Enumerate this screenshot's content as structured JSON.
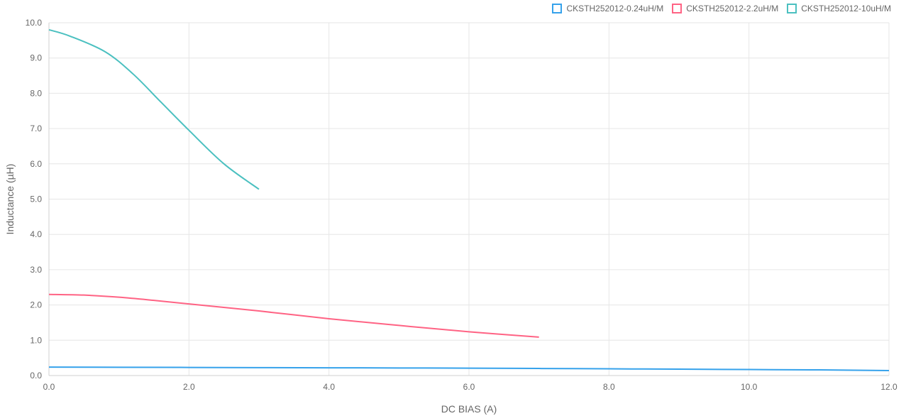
{
  "chart_data": {
    "type": "line",
    "xlabel": "DC BIAS (A)",
    "ylabel": "Inductance (µH)",
    "xlim": [
      0,
      12
    ],
    "ylim": [
      0,
      10
    ],
    "xticks": [
      "0.0",
      "2.0",
      "4.0",
      "6.0",
      "8.0",
      "10.0",
      "12.0"
    ],
    "yticks": [
      "0.0",
      "1.0",
      "2.0",
      "3.0",
      "4.0",
      "5.0",
      "6.0",
      "7.0",
      "8.0",
      "9.0",
      "10.0"
    ],
    "grid": true,
    "legend_position": "top-right",
    "series": [
      {
        "name": "CKSTH252012-0.24uH/M",
        "color": "#36a2eb",
        "points": [
          [
            0,
            0.24
          ],
          [
            1,
            0.235
          ],
          [
            2,
            0.23
          ],
          [
            3,
            0.225
          ],
          [
            4,
            0.22
          ],
          [
            5,
            0.215
          ],
          [
            6,
            0.21
          ],
          [
            7,
            0.2
          ],
          [
            8,
            0.19
          ],
          [
            9,
            0.18
          ],
          [
            10,
            0.17
          ],
          [
            11,
            0.16
          ],
          [
            12,
            0.14
          ]
        ]
      },
      {
        "name": "CKSTH252012-2.2uH/M",
        "color": "#ff6384",
        "points": [
          [
            0,
            2.3
          ],
          [
            0.5,
            2.28
          ],
          [
            1,
            2.22
          ],
          [
            1.5,
            2.13
          ],
          [
            2,
            2.03
          ],
          [
            3,
            1.83
          ],
          [
            4,
            1.61
          ],
          [
            5,
            1.42
          ],
          [
            6,
            1.24
          ],
          [
            7,
            1.09
          ]
        ]
      },
      {
        "name": "CKSTH252012-10uH/M",
        "color": "#4bc0c0",
        "points": [
          [
            0,
            9.8
          ],
          [
            0.3,
            9.62
          ],
          [
            0.8,
            9.18
          ],
          [
            1.2,
            8.55
          ],
          [
            1.6,
            7.75
          ],
          [
            2,
            6.95
          ],
          [
            2.5,
            6.0
          ],
          [
            3,
            5.28
          ]
        ]
      }
    ]
  }
}
